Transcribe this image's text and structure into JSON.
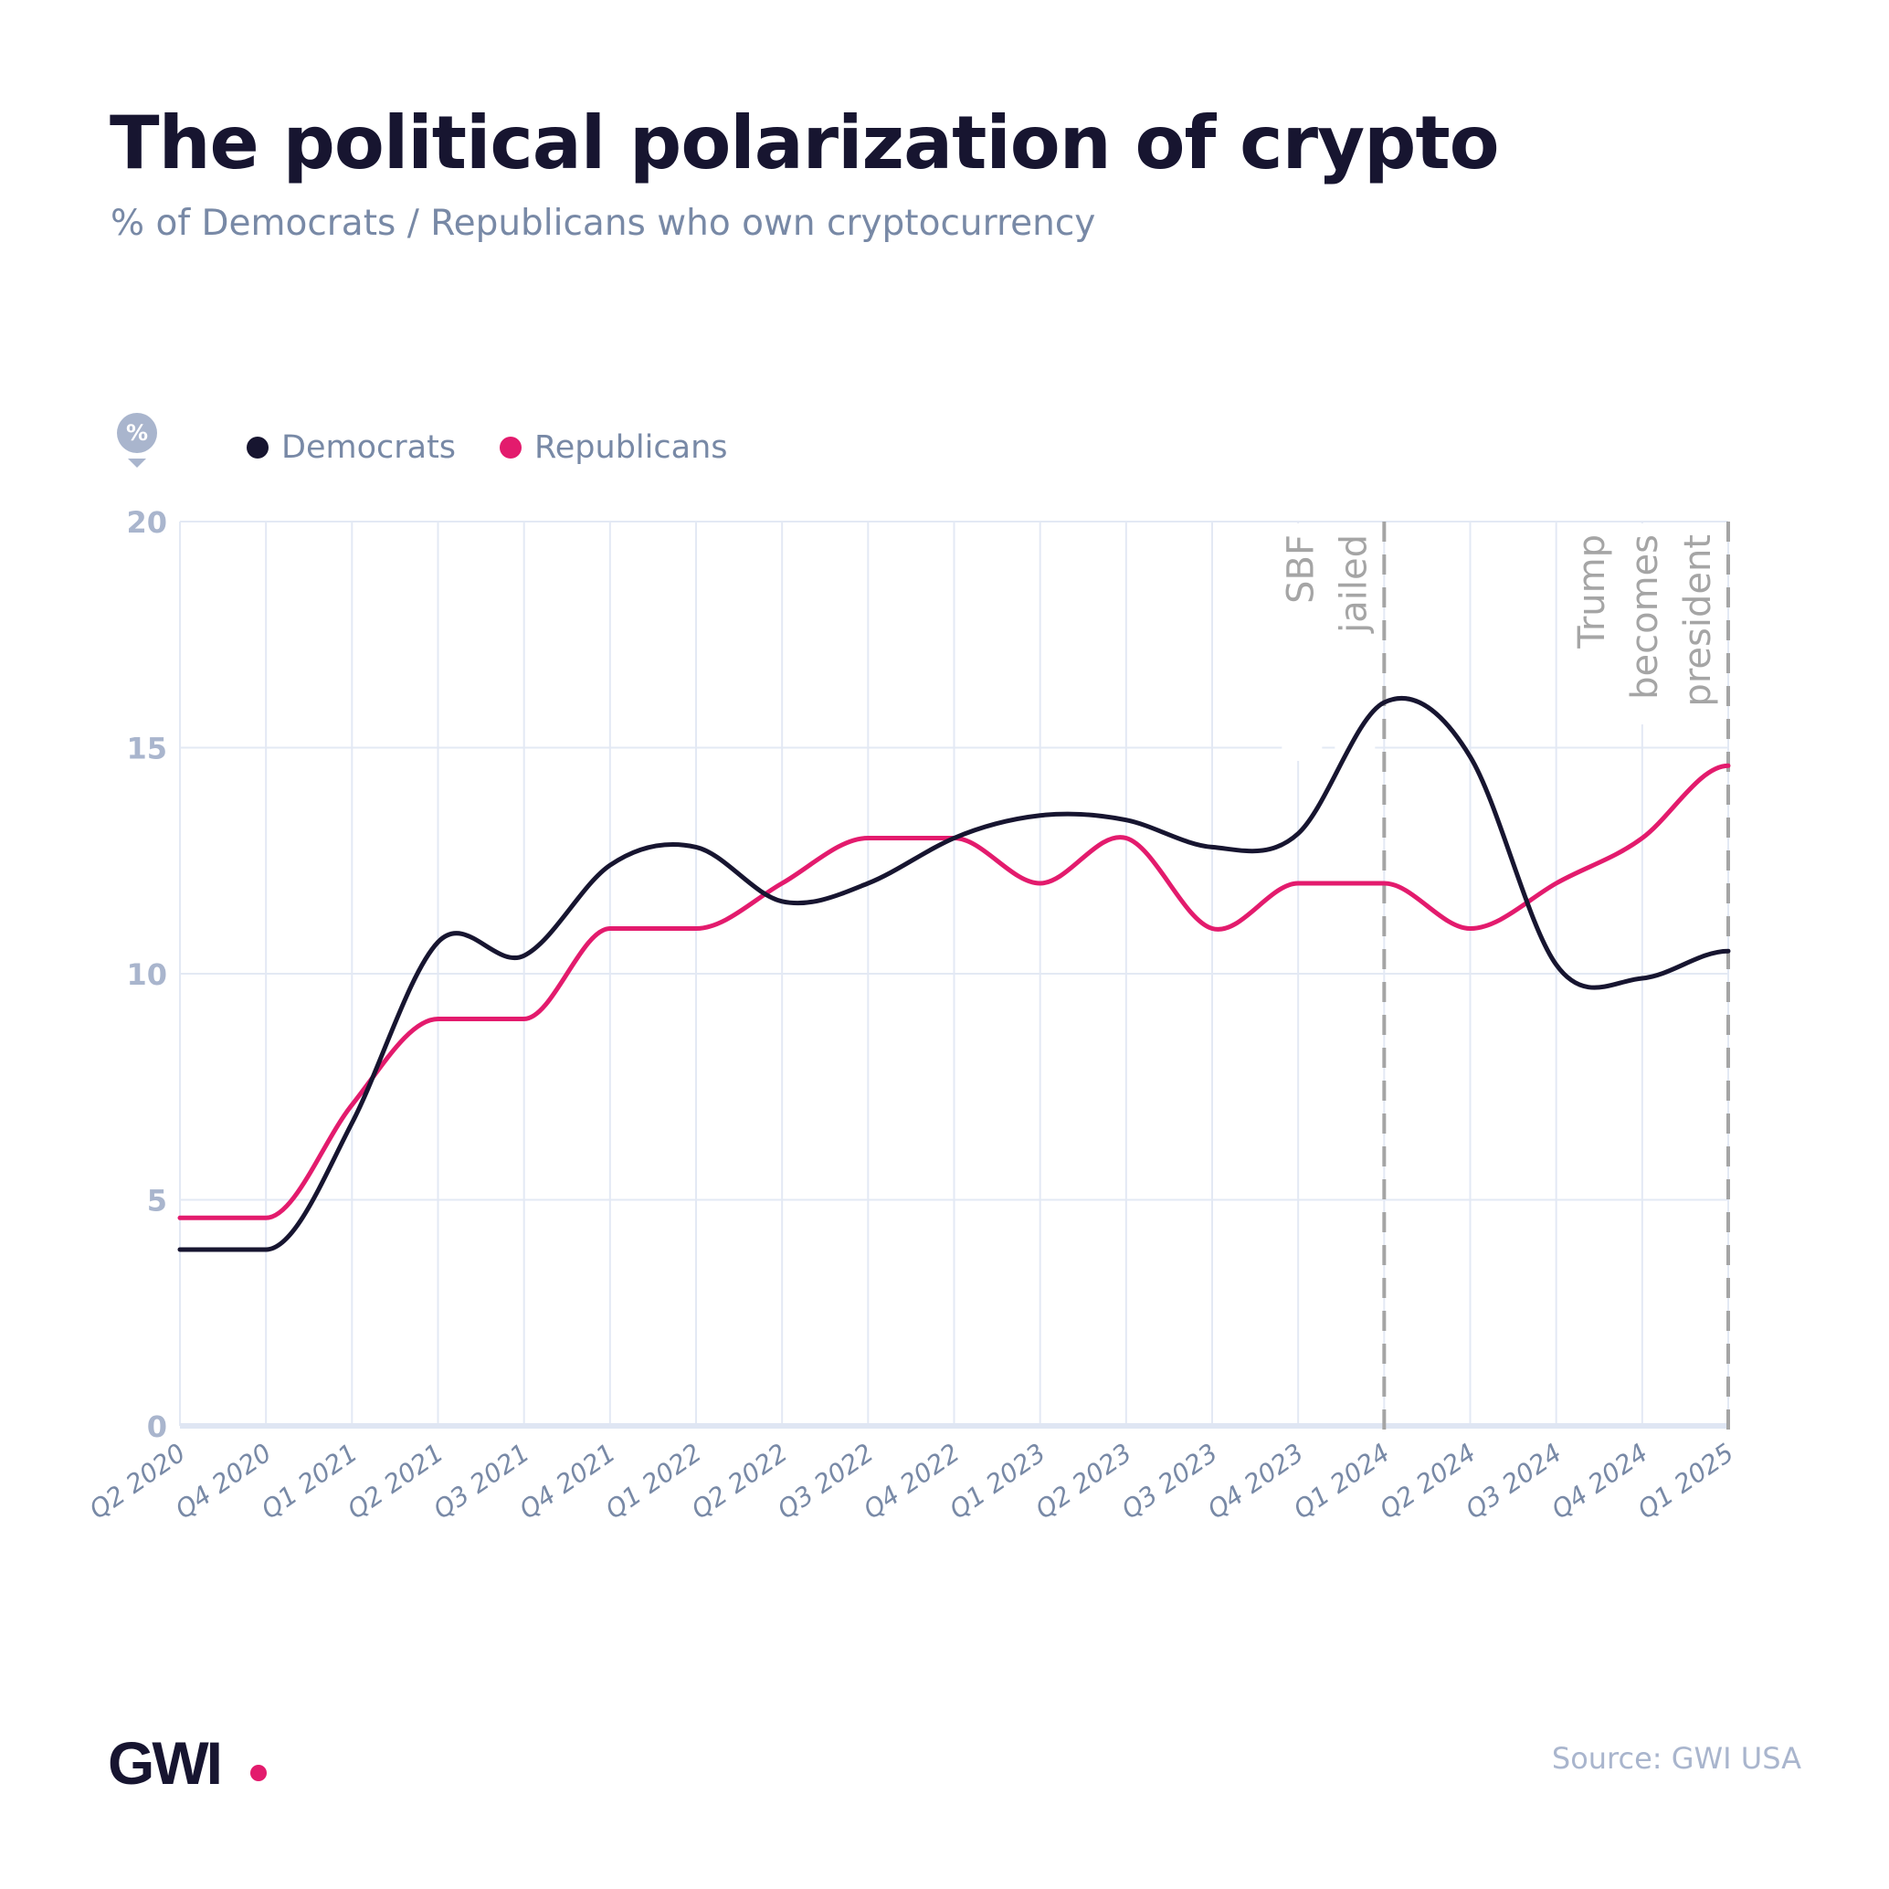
{
  "header": {
    "title": "The political polarization of crypto",
    "subtitle": "% of Democrats / Republicans who own cryptocurrency"
  },
  "unit_badge": "%",
  "legend": [
    {
      "label": "Democrats",
      "color": "#171530"
    },
    {
      "label": "Republicans",
      "color": "#e31b6d"
    }
  ],
  "footer": {
    "logo": "GWI",
    "source": "Source: GWI USA"
  },
  "chart_data": {
    "type": "line",
    "title": "The political polarization of crypto",
    "subtitle": "% of Democrats / Republicans who own cryptocurrency",
    "xlabel": "",
    "ylabel": "%",
    "ylim": [
      0,
      20
    ],
    "yticks": [
      0,
      5,
      10,
      15,
      20
    ],
    "grid": true,
    "legend_position": "top-left",
    "categories": [
      "Q2 2020",
      "Q4 2020",
      "Q1 2021",
      "Q2 2021",
      "Q3 2021",
      "Q4 2021",
      "Q1 2022",
      "Q2 2022",
      "Q3 2022",
      "Q4 2022",
      "Q1 2023",
      "Q2 2023",
      "Q3 2023",
      "Q4 2023",
      "Q1 2024",
      "Q2 2024",
      "Q3 2024",
      "Q4 2024",
      "Q1 2025"
    ],
    "series": [
      {
        "name": "Democrats",
        "color": "#171530",
        "values": [
          3.9,
          3.9,
          6.7,
          10.7,
          10.4,
          12.4,
          12.8,
          11.6,
          12.0,
          13.0,
          13.5,
          13.4,
          12.8,
          13.1,
          16.0,
          14.8,
          10.2,
          9.9,
          10.5
        ]
      },
      {
        "name": "Republicans",
        "color": "#e31b6d",
        "values": [
          4.6,
          4.6,
          7.1,
          9.0,
          9.0,
          11.0,
          11.0,
          12.0,
          13.0,
          13.0,
          12.0,
          13.0,
          11.0,
          12.0,
          12.0,
          11.0,
          12.0,
          13.0,
          14.6
        ]
      }
    ],
    "annotations": [
      {
        "at": "Q1 2024",
        "lines": [
          "SBF",
          "jailed"
        ]
      },
      {
        "at": "Q1 2025",
        "lines": [
          "Trump",
          "becomes",
          "president"
        ]
      }
    ]
  }
}
